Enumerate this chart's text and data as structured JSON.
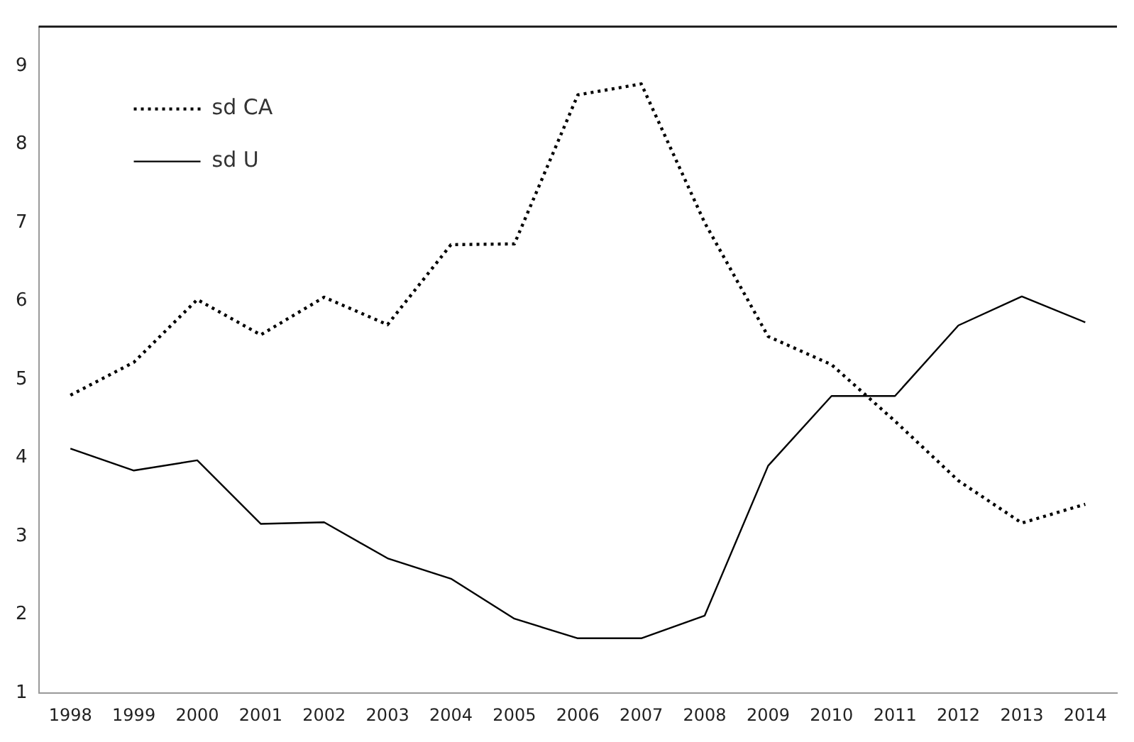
{
  "chart_data": {
    "type": "line",
    "categories": [
      "1998",
      "1999",
      "2000",
      "2001",
      "2002",
      "2003",
      "2004",
      "2005",
      "2006",
      "2007",
      "2008",
      "2009",
      "2010",
      "2011",
      "2012",
      "2013",
      "2014"
    ],
    "series": [
      {
        "name": "sd CA",
        "color": "#000000",
        "line_style": "dotted",
        "values": [
          4.8,
          5.22,
          6.02,
          5.57,
          6.05,
          5.7,
          6.72,
          6.73,
          8.63,
          8.77,
          7.0,
          5.55,
          5.19,
          4.47,
          3.71,
          3.17,
          3.41
        ]
      },
      {
        "name": "sd U",
        "color": "#000000",
        "line_style": "solid",
        "values": [
          4.12,
          3.84,
          3.97,
          3.16,
          3.18,
          2.72,
          2.46,
          1.95,
          1.7,
          1.7,
          1.99,
          3.9,
          4.79,
          4.79,
          5.69,
          6.06,
          5.73
        ]
      }
    ],
    "ylim": [
      1,
      9.5
    ],
    "yticks": [
      1,
      2,
      3,
      4,
      5,
      6,
      7,
      8,
      9
    ],
    "grid": false,
    "legend": "top left",
    "marker": "none"
  }
}
